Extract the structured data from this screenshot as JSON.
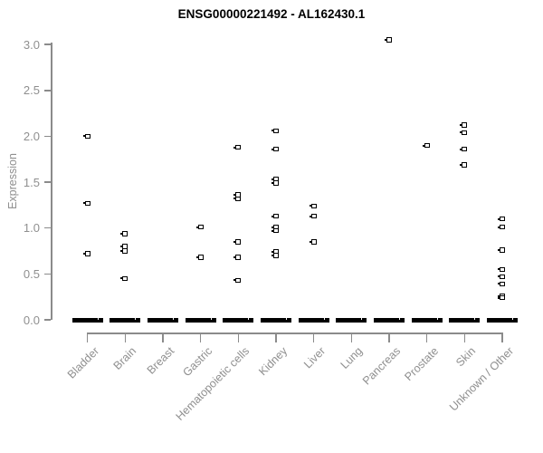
{
  "chart_data": {
    "type": "scatter",
    "subtype": "strip-plot",
    "title": "ENSG00000221492 - AL162430.1",
    "xlabel": "",
    "ylabel": "Expression",
    "ylim": [
      0.0,
      3.0
    ],
    "yticks": [
      0.0,
      0.5,
      1.0,
      1.5,
      2.0,
      2.5,
      3.0
    ],
    "grid": "off",
    "legend": "none",
    "marker": "open-square",
    "point_color": "#000000",
    "axis_color": "#8b8b8b",
    "label_color": "#8f8f8f",
    "title_color": "#000000",
    "categories": [
      "Bladder",
      "Brain",
      "Breast",
      "Gastric",
      "Hematopoietic cells",
      "Kidney",
      "Liver",
      "Lung",
      "Pancreas",
      "Prostate",
      "Skin",
      "Unknown / Other"
    ],
    "groups": [
      {
        "label": "Bladder",
        "values": [
          2.0,
          1.27,
          0.72
        ],
        "zero_cluster": true
      },
      {
        "label": "Brain",
        "values": [
          0.94,
          0.8,
          0.75,
          0.45
        ],
        "zero_cluster": true
      },
      {
        "label": "Breast",
        "values": [],
        "zero_cluster": true
      },
      {
        "label": "Gastric",
        "values": [
          1.01,
          0.68
        ],
        "zero_cluster": true
      },
      {
        "label": "Hematopoietic cells",
        "values": [
          1.88,
          1.36,
          1.32,
          0.85,
          0.68,
          0.43
        ],
        "zero_cluster": true
      },
      {
        "label": "Kidney",
        "values": [
          2.06,
          1.86,
          1.53,
          1.49,
          1.13,
          1.01,
          0.97,
          0.74,
          0.7
        ],
        "zero_cluster": true
      },
      {
        "label": "Liver",
        "values": [
          1.24,
          1.13,
          0.85
        ],
        "zero_cluster": true
      },
      {
        "label": "Lung",
        "values": [],
        "zero_cluster": true
      },
      {
        "label": "Pancreas",
        "values": [
          3.05
        ],
        "zero_cluster": true
      },
      {
        "label": "Prostate",
        "values": [
          1.9
        ],
        "zero_cluster": true
      },
      {
        "label": "Skin",
        "values": [
          2.12,
          2.04,
          1.86,
          1.69
        ],
        "zero_cluster": true
      },
      {
        "label": "Unknown / Other",
        "values": [
          1.1,
          1.01,
          0.76,
          0.55,
          0.47,
          0.39,
          0.26,
          0.24
        ],
        "zero_cluster": true
      }
    ]
  }
}
